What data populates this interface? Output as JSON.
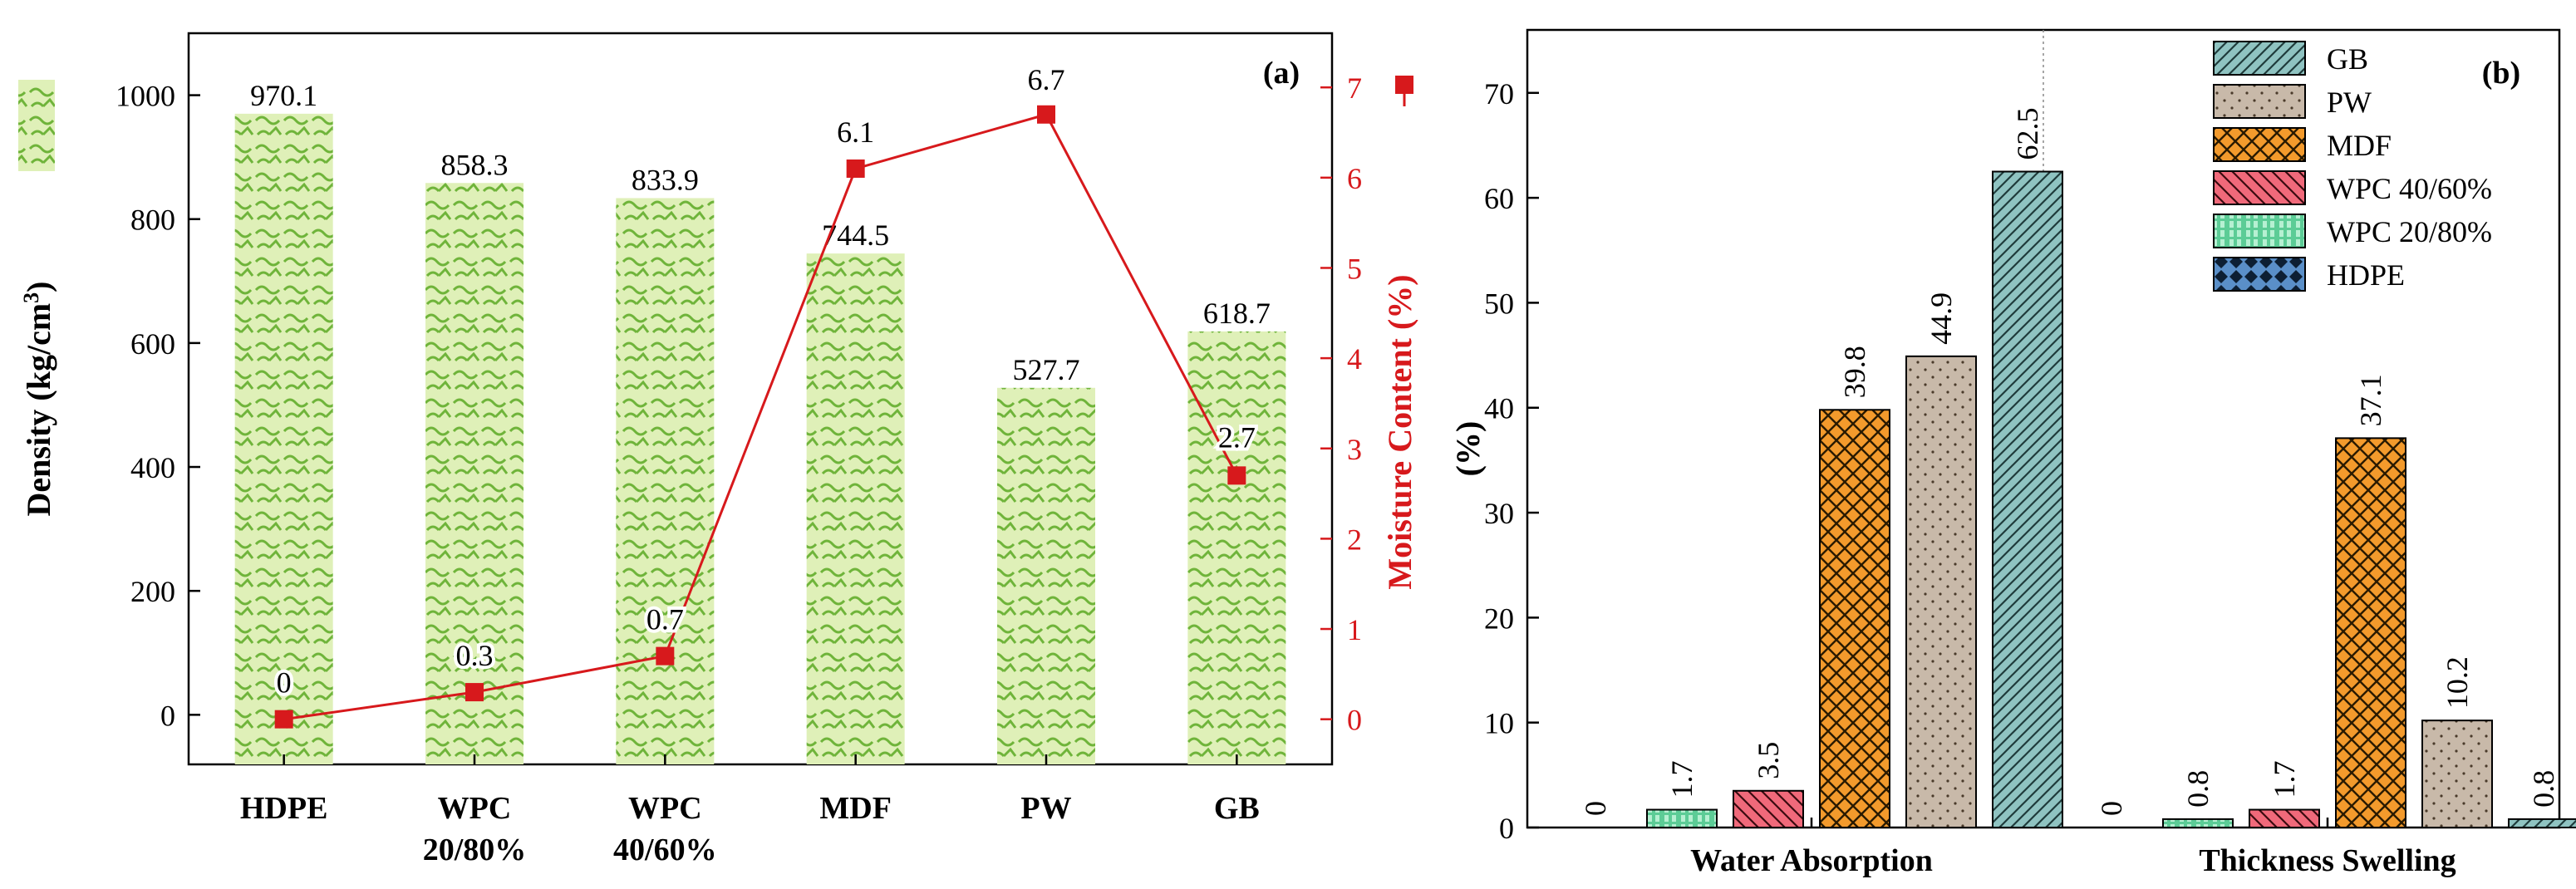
{
  "colors": {
    "green": "#7cc242",
    "green_light": "#dff0b8",
    "red": "#d7191c",
    "black": "#000000",
    "grey_line": "#555555",
    "gb": "#8fc3c1",
    "pw": "#c8b9a9",
    "mdf": "#f39a2c",
    "wpc4060": "#f0697a",
    "wpc2080": "#5ccc96",
    "hdpe": "#5a8fc8"
  },
  "chart_data": [
    {
      "type": "bar",
      "panel_label": "(a)",
      "categories": [
        [
          "HDPE"
        ],
        [
          "WPC",
          "20/80%"
        ],
        [
          "WPC",
          "40/60%"
        ],
        [
          "MDF"
        ],
        [
          "PW"
        ],
        [
          "GB"
        ]
      ],
      "bar_values": [
        970.1,
        858.3,
        833.9,
        744.5,
        527.7,
        618.7
      ],
      "bar_labels": [
        "970.1",
        "858.3",
        "833.9",
        "744.5",
        "527.7",
        "618.7"
      ],
      "line_values": [
        0,
        0.3,
        0.7,
        6.1,
        6.7,
        2.7
      ],
      "line_labels": [
        "0",
        "0.3",
        "0.7",
        "6.1",
        "6.7",
        "2.7"
      ],
      "ylabel_left": "Density (kg/cm",
      "ylabel_left_sup": "3",
      "ylabel_left_close": ")",
      "ylabel_right": "Moisture Content (%)",
      "ylim_left": [
        -80,
        1100
      ],
      "yticks_left": [
        "0",
        "200",
        "400",
        "600",
        "800",
        "1000"
      ],
      "ylim_right": [
        -0.5,
        7.6
      ],
      "yticks_right": [
        "0",
        "1",
        "2",
        "3",
        "4",
        "5",
        "6",
        "7"
      ],
      "legend_placement": "top-left and top-right markers"
    },
    {
      "type": "bar",
      "panel_label": "(b)",
      "groups": [
        "Water Absorption",
        "Thickness Swelling"
      ],
      "ylabel": "(%)",
      "ylim": [
        0,
        76
      ],
      "yticks": [
        "0",
        "10",
        "20",
        "30",
        "40",
        "50",
        "60",
        "70"
      ],
      "series": [
        {
          "name": "HDPE",
          "values": [
            0,
            0
          ],
          "labels": [
            "0",
            "0"
          ]
        },
        {
          "name": "WPC 20/80%",
          "values": [
            1.7,
            0.8
          ],
          "labels": [
            "1.7",
            "0.8"
          ]
        },
        {
          "name": "WPC 40/60%",
          "values": [
            3.5,
            1.7
          ],
          "labels": [
            "3.5",
            "1.7"
          ]
        },
        {
          "name": "MDF",
          "values": [
            39.8,
            37.1
          ],
          "labels": [
            "39.8",
            "37.1"
          ]
        },
        {
          "name": "PW",
          "values": [
            44.9,
            10.2
          ],
          "labels": [
            "44.9",
            "10.2"
          ]
        },
        {
          "name": "GB",
          "values": [
            62.5,
            0.8
          ],
          "labels": [
            "62.5",
            "0.8"
          ]
        }
      ],
      "legend_order": [
        "GB",
        "PW",
        "MDF",
        "WPC 40/60%",
        "WPC 20/80%",
        "HDPE"
      ],
      "legend_placement": "top-right"
    }
  ]
}
